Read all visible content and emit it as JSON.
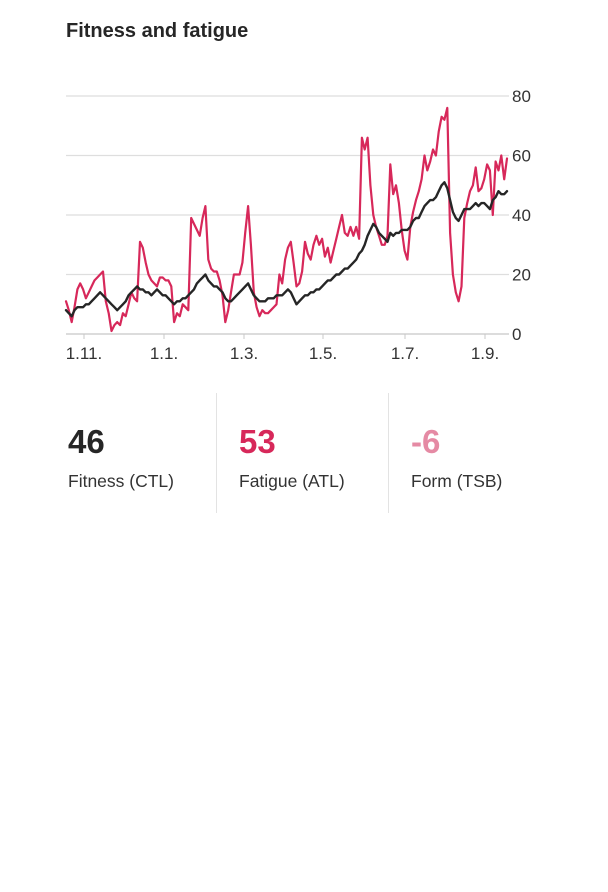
{
  "title": "Fitness and fatigue",
  "chart_data": {
    "type": "line",
    "ylim": [
      0,
      80
    ],
    "yticks": [
      0,
      20,
      40,
      60,
      80
    ],
    "x_tick_labels": [
      "1.11.",
      "1.1.",
      "1.3.",
      "1.5.",
      "1.7.",
      "1.9."
    ],
    "grid": true,
    "series": [
      {
        "color": "#d7285a",
        "values": [
          11,
          8,
          4,
          9,
          15,
          17,
          15,
          12,
          14,
          16,
          18,
          19,
          20,
          21,
          11,
          7,
          1,
          3,
          4,
          3,
          7,
          6,
          10,
          14,
          12,
          11,
          31,
          29,
          24,
          20,
          18,
          17,
          16,
          19,
          19,
          18,
          18,
          16,
          4,
          7,
          6,
          10,
          9,
          8,
          39,
          37,
          35,
          33,
          39,
          43,
          25,
          22,
          21,
          21,
          18,
          13,
          4,
          8,
          14,
          20,
          20,
          20,
          24,
          34,
          43,
          30,
          14,
          9,
          6,
          8,
          7,
          7,
          8,
          9,
          10,
          20,
          17,
          25,
          29,
          31,
          24,
          16,
          17,
          21,
          31,
          27,
          25,
          30,
          33,
          30,
          32,
          26,
          29,
          24,
          28,
          32,
          36,
          40,
          34,
          33,
          36,
          33,
          36,
          32,
          66,
          62,
          66,
          50,
          40,
          36,
          33,
          30,
          30,
          33,
          57,
          47,
          50,
          44,
          35,
          28,
          25,
          36,
          41,
          45,
          48,
          52,
          60,
          55,
          58,
          62,
          60,
          68,
          73,
          72,
          76,
          34,
          20,
          14,
          11,
          16,
          39,
          44,
          48,
          50,
          56,
          48,
          49,
          52,
          57,
          55,
          40,
          58,
          55,
          60,
          52,
          59
        ]
      },
      {
        "color": "#262626",
        "values": [
          8,
          7,
          6,
          8,
          9,
          9,
          9,
          10,
          10,
          11,
          12,
          13,
          14,
          13,
          12,
          11,
          10,
          9,
          8,
          9,
          10,
          11,
          13,
          14,
          15,
          16,
          15,
          15,
          14,
          14,
          13,
          14,
          15,
          14,
          13,
          13,
          12,
          11,
          10,
          11,
          11,
          12,
          12,
          13,
          14,
          15,
          17,
          18,
          19,
          20,
          18,
          17,
          16,
          16,
          15,
          14,
          12,
          11,
          11,
          12,
          13,
          14,
          15,
          16,
          17,
          15,
          13,
          12,
          11,
          11,
          11,
          12,
          12,
          12,
          13,
          13,
          13,
          14,
          15,
          14,
          12,
          10,
          11,
          12,
          13,
          13,
          14,
          14,
          15,
          15,
          16,
          17,
          18,
          18,
          19,
          20,
          20,
          21,
          22,
          22,
          23,
          24,
          25,
          27,
          28,
          30,
          33,
          35,
          37,
          36,
          34,
          33,
          32,
          31,
          34,
          33,
          34,
          34,
          35,
          35,
          35,
          36,
          38,
          39,
          39,
          41,
          43,
          44,
          45,
          45,
          46,
          48,
          50,
          51,
          49,
          45,
          41,
          39,
          38,
          40,
          42,
          42,
          42,
          43,
          44,
          43,
          44,
          44,
          43,
          42,
          45,
          46,
          48,
          47,
          47,
          48
        ]
      }
    ]
  },
  "stats": [
    {
      "value": "46",
      "label": "Fitness (CTL)",
      "color": "#262626"
    },
    {
      "value": "53",
      "label": "Fatigue (ATL)",
      "color": "#d7285a"
    },
    {
      "value": "-6",
      "label": "Form (TSB)",
      "color": "#e58aa4"
    }
  ]
}
